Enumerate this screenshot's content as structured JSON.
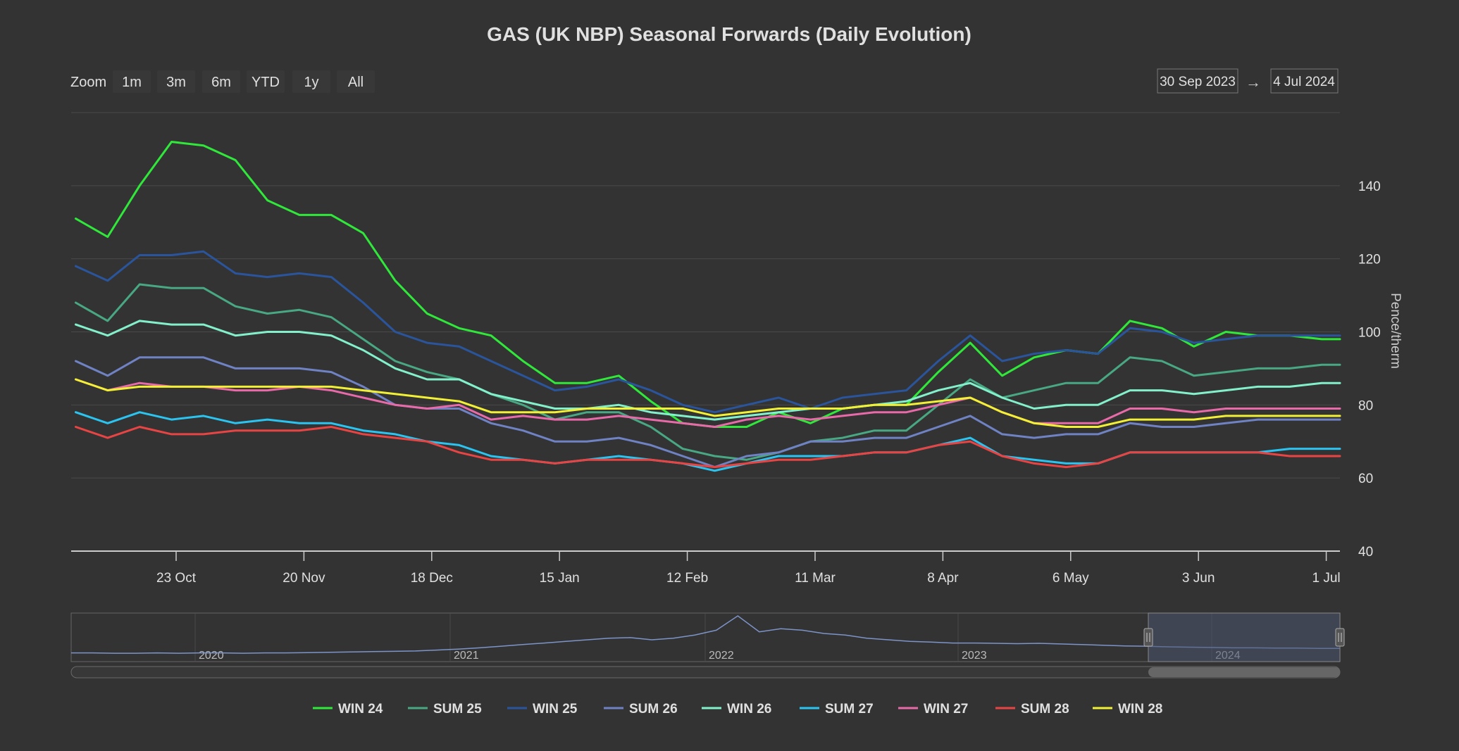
{
  "page": {
    "title": "GAS (UK NBP) Seasonal Forwards (Daily Evolution)"
  },
  "zoom": {
    "label": "Zoom",
    "buttons": [
      "1m",
      "3m",
      "6m",
      "YTD",
      "1y",
      "All"
    ]
  },
  "range": {
    "from": "30 Sep 2023",
    "arrow": "→",
    "to": "4 Jul 2024"
  },
  "colors": {
    "background": "#333333",
    "gridline": "#4a4a4a",
    "text": "#e0e0e0",
    "navigator_series": "#7d94c9",
    "navigator_mask": "#4b5470"
  },
  "chart_data": {
    "type": "line",
    "title": "GAS (UK NBP) Seasonal Forwards (Daily Evolution)",
    "ylabel": "Pence/therm",
    "ylim": [
      40,
      160
    ],
    "yticks": [
      40,
      60,
      80,
      100,
      120,
      140
    ],
    "xlim": [
      "2023-09-30",
      "2024-07-04"
    ],
    "xticks": [
      {
        "date": "2023-10-23",
        "label": "23 Oct"
      },
      {
        "date": "2023-11-20",
        "label": "20 Nov"
      },
      {
        "date": "2023-12-18",
        "label": "18 Dec"
      },
      {
        "date": "2024-01-15",
        "label": "15 Jan"
      },
      {
        "date": "2024-02-12",
        "label": "12 Feb"
      },
      {
        "date": "2024-03-11",
        "label": "11 Mar"
      },
      {
        "date": "2024-04-08",
        "label": "8 Apr"
      },
      {
        "date": "2024-05-06",
        "label": "6 May"
      },
      {
        "date": "2024-06-03",
        "label": "3 Jun"
      },
      {
        "date": "2024-07-01",
        "label": "1 Jul"
      }
    ],
    "grid": true,
    "legend_position": "bottom-center",
    "x": [
      "2023-10-01",
      "2023-10-08",
      "2023-10-15",
      "2023-10-22",
      "2023-10-29",
      "2023-11-05",
      "2023-11-12",
      "2023-11-19",
      "2023-11-26",
      "2023-12-03",
      "2023-12-10",
      "2023-12-17",
      "2023-12-24",
      "2023-12-31",
      "2024-01-07",
      "2024-01-14",
      "2024-01-21",
      "2024-01-28",
      "2024-02-04",
      "2024-02-11",
      "2024-02-18",
      "2024-02-25",
      "2024-03-03",
      "2024-03-10",
      "2024-03-17",
      "2024-03-24",
      "2024-03-31",
      "2024-04-07",
      "2024-04-14",
      "2024-04-21",
      "2024-04-28",
      "2024-05-05",
      "2024-05-12",
      "2024-05-19",
      "2024-05-26",
      "2024-06-02",
      "2024-06-09",
      "2024-06-16",
      "2024-06-23",
      "2024-06-30",
      "2024-07-04"
    ],
    "series": [
      {
        "name": "WIN 24",
        "color": "#2fe83a",
        "values": [
          131,
          126,
          140,
          152,
          151,
          147,
          136,
          132,
          132,
          127,
          114,
          105,
          101,
          99,
          92,
          86,
          86,
          88,
          81,
          75,
          74,
          74,
          78,
          75,
          79,
          80,
          80,
          89,
          97,
          88,
          93,
          95,
          94,
          103,
          101,
          96,
          100,
          99,
          99,
          98,
          98
        ]
      },
      {
        "name": "SUM 25",
        "color": "#48a883",
        "values": [
          108,
          103,
          113,
          112,
          112,
          107,
          105,
          106,
          104,
          98,
          92,
          89,
          87,
          83,
          80,
          76,
          78,
          78,
          74,
          68,
          66,
          65,
          67,
          70,
          71,
          73,
          73,
          80,
          87,
          82,
          84,
          86,
          86,
          93,
          92,
          88,
          89,
          90,
          90,
          91,
          91
        ]
      },
      {
        "name": "WIN 25",
        "color": "#2a559c",
        "values": [
          118,
          114,
          121,
          121,
          122,
          116,
          115,
          116,
          115,
          108,
          100,
          97,
          96,
          92,
          88,
          84,
          85,
          87,
          84,
          80,
          78,
          80,
          82,
          79,
          82,
          83,
          84,
          92,
          99,
          92,
          94,
          95,
          94,
          101,
          100,
          97,
          98,
          99,
          99,
          99,
          99
        ]
      },
      {
        "name": "SUM 26",
        "color": "#6f82c4",
        "values": [
          92,
          88,
          93,
          93,
          93,
          90,
          90,
          90,
          89,
          85,
          80,
          79,
          79,
          75,
          73,
          70,
          70,
          71,
          69,
          66,
          63,
          66,
          67,
          70,
          70,
          71,
          71,
          74,
          77,
          72,
          71,
          72,
          72,
          75,
          74,
          74,
          75,
          76,
          76,
          76,
          76
        ]
      },
      {
        "name": "WIN 26",
        "color": "#83f0cc",
        "values": [
          102,
          99,
          103,
          102,
          102,
          99,
          100,
          100,
          99,
          95,
          90,
          87,
          87,
          83,
          81,
          79,
          79,
          80,
          78,
          77,
          76,
          77,
          78,
          79,
          79,
          80,
          81,
          84,
          86,
          82,
          79,
          80,
          80,
          84,
          84,
          83,
          84,
          85,
          85,
          86,
          86
        ]
      },
      {
        "name": "SUM 27",
        "color": "#2bc4f0",
        "values": [
          78,
          75,
          78,
          76,
          77,
          75,
          76,
          75,
          75,
          73,
          72,
          70,
          69,
          66,
          65,
          64,
          65,
          66,
          65,
          64,
          62,
          64,
          66,
          66,
          66,
          67,
          67,
          69,
          71,
          66,
          65,
          64,
          64,
          67,
          67,
          67,
          67,
          67,
          68,
          68,
          68
        ]
      },
      {
        "name": "WIN 27",
        "color": "#e86aa8",
        "values": [
          87,
          84,
          86,
          85,
          85,
          84,
          84,
          85,
          84,
          82,
          80,
          79,
          80,
          76,
          77,
          76,
          76,
          77,
          76,
          75,
          74,
          76,
          77,
          76,
          77,
          78,
          78,
          80,
          82,
          78,
          75,
          75,
          75,
          79,
          79,
          78,
          79,
          79,
          79,
          79,
          79
        ]
      },
      {
        "name": "SUM 28",
        "color": "#e84444",
        "values": [
          74,
          71,
          74,
          72,
          72,
          73,
          73,
          73,
          74,
          72,
          71,
          70,
          67,
          65,
          65,
          64,
          65,
          65,
          65,
          64,
          63,
          64,
          65,
          65,
          66,
          67,
          67,
          69,
          70,
          66,
          64,
          63,
          64,
          67,
          67,
          67,
          67,
          67,
          66,
          66,
          66
        ]
      },
      {
        "name": "WIN 28",
        "color": "#f2f035",
        "values": [
          87,
          84,
          85,
          85,
          85,
          85,
          85,
          85,
          85,
          84,
          83,
          82,
          81,
          78,
          78,
          78,
          79,
          79,
          79,
          79,
          77,
          78,
          79,
          79,
          79,
          80,
          80,
          81,
          82,
          78,
          75,
          74,
          74,
          76,
          76,
          76,
          77,
          77,
          77,
          77,
          77
        ]
      }
    ]
  },
  "navigator": {
    "years": [
      "2020",
      "2021",
      "2022",
      "2023",
      "2024"
    ],
    "values": [
      14,
      14,
      13,
      13,
      14,
      13,
      14,
      14,
      13,
      14,
      14,
      15,
      16,
      17,
      18,
      19,
      20,
      23,
      26,
      30,
      35,
      40,
      45,
      50,
      55,
      60,
      62,
      55,
      60,
      70,
      85,
      130,
      80,
      90,
      85,
      75,
      70,
      60,
      55,
      50,
      48,
      45,
      45,
      44,
      43,
      44,
      42,
      40,
      38,
      36,
      35,
      33,
      32,
      31,
      30,
      30,
      29,
      29,
      28,
      28
    ]
  }
}
